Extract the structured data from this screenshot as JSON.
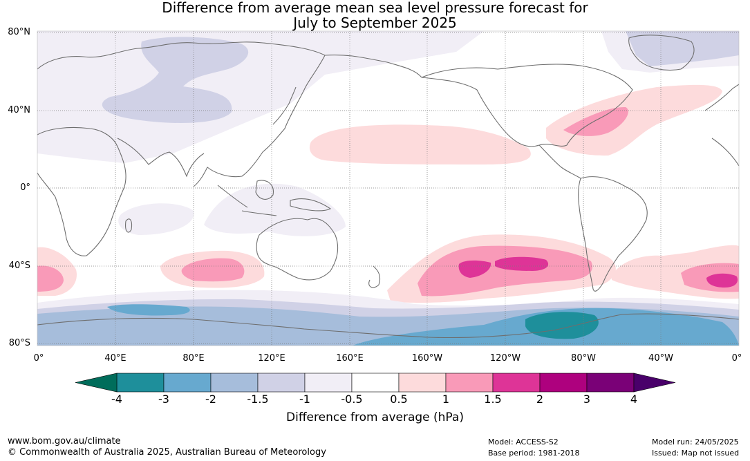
{
  "title": {
    "line1": "Difference from average mean sea level pressure forecast for",
    "line2": "July to September 2025"
  },
  "map": {
    "lat_labels": [
      "80°N",
      "40°N",
      "0°",
      "40°S",
      "80°S"
    ],
    "lon_labels": [
      "0°",
      "40°E",
      "80°E",
      "120°E",
      "160°E",
      "160°W",
      "120°W",
      "80°W",
      "40°W",
      "0°"
    ],
    "coastline_color": "#6e6e6e",
    "grid_style": "dotted"
  },
  "colorbar": {
    "title": "Difference from average (hPa)",
    "tick_labels": [
      "-4",
      "-3",
      "-2",
      "-1.5",
      "-1",
      "-0.5",
      "0.5",
      "1",
      "1.5",
      "2",
      "3",
      "4"
    ],
    "colors": {
      "below_min": "#006d5b",
      "b1": "#1e8f9b",
      "b2": "#67a9cf",
      "b3": "#a6bddb",
      "b4": "#d0d1e6",
      "b5": "#f1eef6",
      "b6": "#ffffff",
      "b7": "#fddbdc",
      "b8": "#f99ab8",
      "b9": "#de3497",
      "b10": "#ae017e",
      "b11": "#7a0177",
      "above_max": "#49006a"
    }
  },
  "footer": {
    "url": "www.bom.gov.au/climate",
    "copyright": "© Commonwealth of Australia 2025, Australian Bureau of Meteorology",
    "model": "Model: ACCESS-S2",
    "base_period": "Base period: 1981-2018",
    "model_run": "Model run: 24/05/2025",
    "issued": "Issued: Map not issued"
  }
}
